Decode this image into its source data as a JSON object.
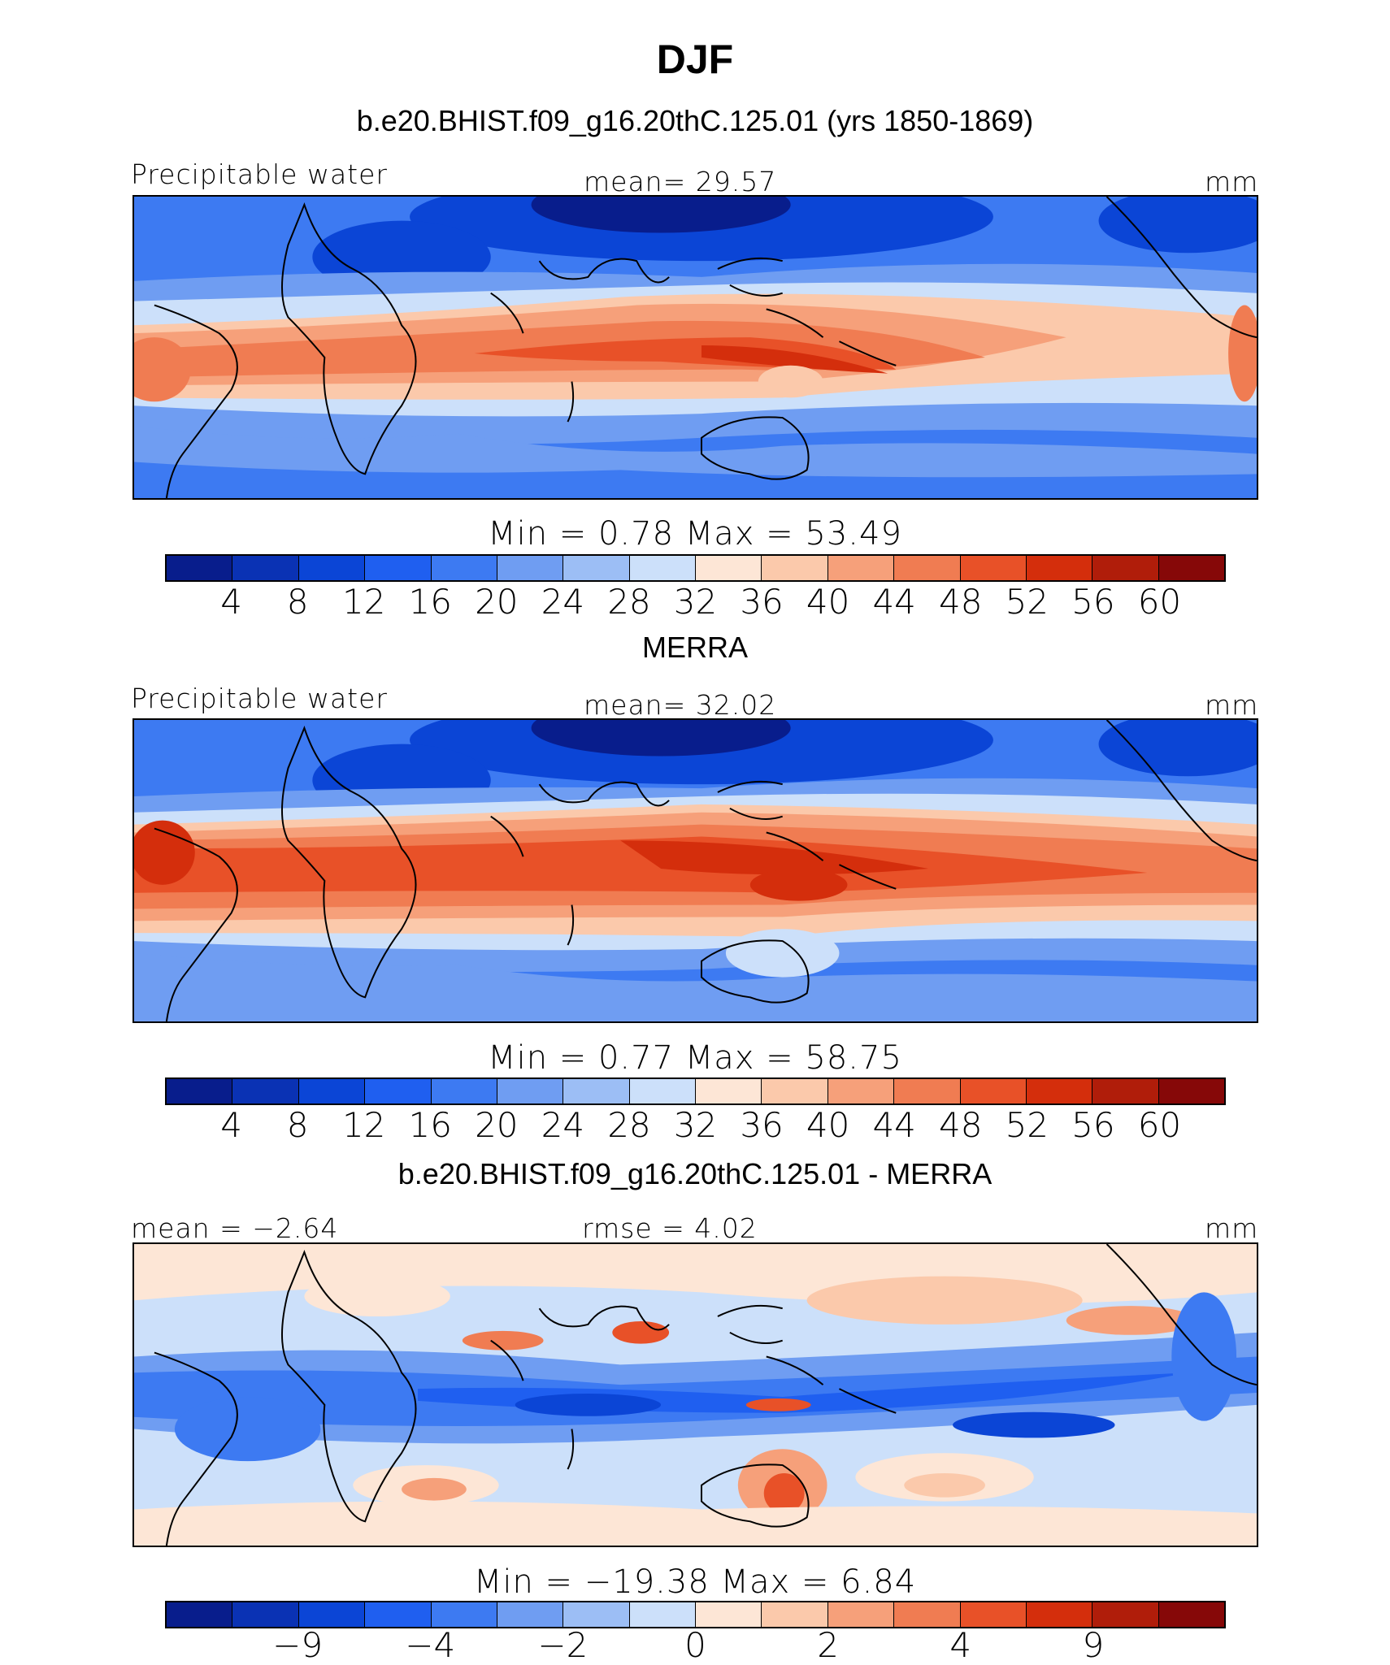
{
  "figure_title": "DJF",
  "colors": {
    "scale": [
      "#081d8c",
      "#0a32b4",
      "#0b45d6",
      "#1f5ff0",
      "#3d7af2",
      "#6f9df2",
      "#9cbef5",
      "#cce0fa",
      "#fde6d6",
      "#fbc9ab",
      "#f6a07a",
      "#f07c52",
      "#e85128",
      "#d42e0c",
      "#b01d0a",
      "#860808"
    ],
    "coast": "#000000"
  },
  "panels": [
    {
      "header": "b.e20.BHIST.f09_g16.20thC.125.01 (yrs 1850-1869)",
      "left_label": "Precipitable water",
      "center_label": "mean=   29.57",
      "right_label": "mm",
      "minmax": "Min =    0.78  Max =   53.49",
      "tick_labels": [
        "4",
        "8",
        "12",
        "16",
        "20",
        "24",
        "28",
        "32",
        "36",
        "40",
        "44",
        "48",
        "52",
        "56",
        "60"
      ]
    },
    {
      "header": "MERRA",
      "left_label": "Precipitable water",
      "center_label": "mean=   32.02",
      "right_label": "mm",
      "minmax": "Min =    0.77  Max =   58.75",
      "tick_labels": [
        "4",
        "8",
        "12",
        "16",
        "20",
        "24",
        "28",
        "32",
        "36",
        "40",
        "44",
        "48",
        "52",
        "56",
        "60"
      ]
    },
    {
      "header": "b.e20.BHIST.f09_g16.20thC.125.01 - MERRA",
      "left_label": "mean =  −2.64",
      "center_label": "rmse =    4.02",
      "right_label": "mm",
      "minmax": "Min = −19.38  Max =    6.84",
      "tick_labels": [
        "−9",
        "−4",
        "−2",
        "0",
        "2",
        "4",
        "9"
      ]
    }
  ]
}
